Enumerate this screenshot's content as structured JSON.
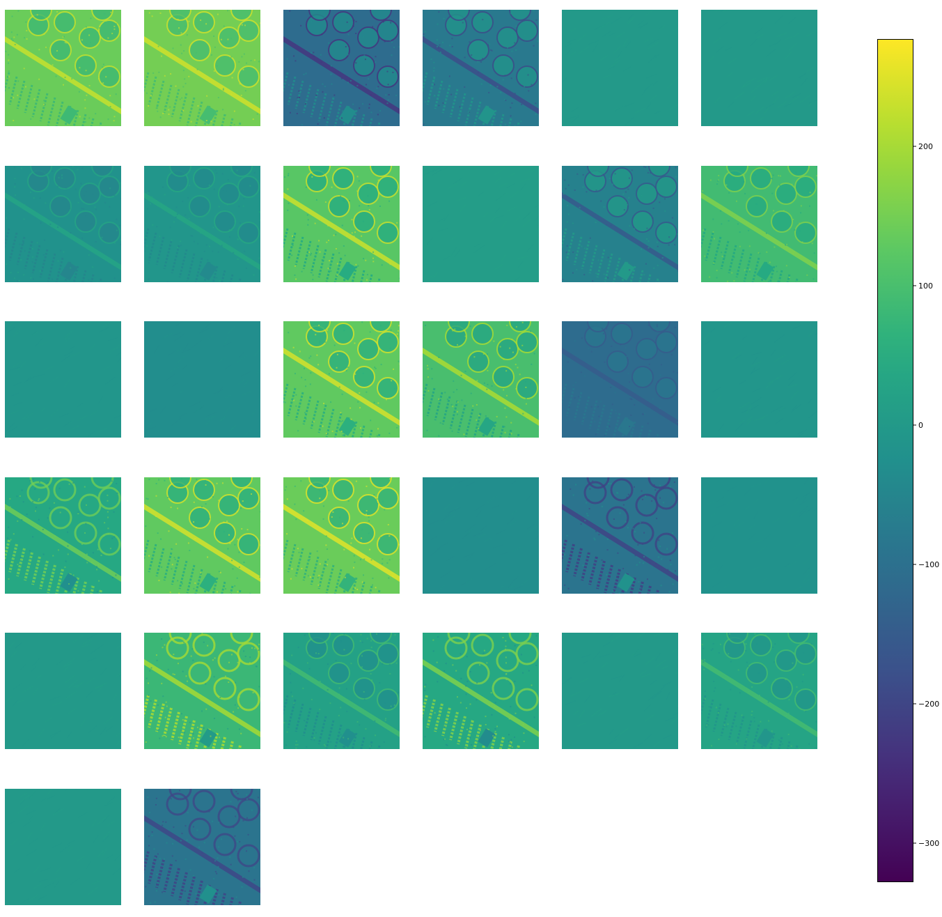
{
  "chart_data": {
    "type": "heatmap",
    "layout": {
      "columns": 6,
      "panel_count": 32
    },
    "panels": [
      {
        "index": 0,
        "mean": 140,
        "contrast": 110,
        "style": "scene"
      },
      {
        "index": 1,
        "mean": 150,
        "contrast": 110,
        "style": "scene"
      },
      {
        "index": 2,
        "mean": -110,
        "contrast": 150,
        "style": "scene-inverted"
      },
      {
        "index": 3,
        "mean": -80,
        "contrast": 130,
        "style": "scene-inverted"
      },
      {
        "index": 4,
        "mean": 0,
        "contrast": 25,
        "style": "edge"
      },
      {
        "index": 5,
        "mean": 0,
        "contrast": 30,
        "style": "edge"
      },
      {
        "index": 6,
        "mean": -20,
        "contrast": 60,
        "style": "scene"
      },
      {
        "index": 7,
        "mean": -10,
        "contrast": 60,
        "style": "scene"
      },
      {
        "index": 8,
        "mean": 120,
        "contrast": 140,
        "style": "scene"
      },
      {
        "index": 9,
        "mean": 10,
        "contrast": 25,
        "style": "edge"
      },
      {
        "index": 10,
        "mean": -60,
        "contrast": 120,
        "style": "scene-inverted"
      },
      {
        "index": 11,
        "mean": 90,
        "contrast": 90,
        "style": "scene"
      },
      {
        "index": 12,
        "mean": -10,
        "contrast": 25,
        "style": "edge"
      },
      {
        "index": 13,
        "mean": -30,
        "contrast": 25,
        "style": "edge"
      },
      {
        "index": 14,
        "mean": 130,
        "contrast": 140,
        "style": "scene"
      },
      {
        "index": 15,
        "mean": 100,
        "contrast": 130,
        "style": "scene"
      },
      {
        "index": 16,
        "mean": -110,
        "contrast": 50,
        "style": "scene-inverted"
      },
      {
        "index": 17,
        "mean": -10,
        "contrast": 35,
        "style": "edge"
      },
      {
        "index": 18,
        "mean": 40,
        "contrast": 130,
        "style": "rows"
      },
      {
        "index": 19,
        "mean": 130,
        "contrast": 140,
        "style": "scene"
      },
      {
        "index": 20,
        "mean": 140,
        "contrast": 140,
        "style": "scene"
      },
      {
        "index": 21,
        "mean": -30,
        "contrast": 25,
        "style": "edge"
      },
      {
        "index": 22,
        "mean": -90,
        "contrast": 140,
        "style": "rows-inverted"
      },
      {
        "index": 23,
        "mean": -20,
        "contrast": 20,
        "style": "edge"
      },
      {
        "index": 24,
        "mean": 0,
        "contrast": 25,
        "style": "edge"
      },
      {
        "index": 25,
        "mean": 80,
        "contrast": 150,
        "style": "rows"
      },
      {
        "index": 26,
        "mean": 20,
        "contrast": 90,
        "style": "scene"
      },
      {
        "index": 27,
        "mean": 40,
        "contrast": 150,
        "style": "rows"
      },
      {
        "index": 28,
        "mean": 0,
        "contrast": 35,
        "style": "edge"
      },
      {
        "index": 29,
        "mean": 30,
        "contrast": 80,
        "style": "scene"
      },
      {
        "index": 30,
        "mean": 0,
        "contrast": 25,
        "style": "edge"
      },
      {
        "index": 31,
        "mean": -90,
        "contrast": 130,
        "style": "rows-inverted"
      }
    ],
    "colorbar": {
      "colormap": "viridis",
      "vmin": -328,
      "vmax": 277,
      "ticks": [
        200,
        100,
        0,
        -100,
        -200,
        -300
      ],
      "tick_labels": [
        "200",
        "100",
        "0",
        "−100",
        "−200",
        "−300"
      ]
    }
  }
}
